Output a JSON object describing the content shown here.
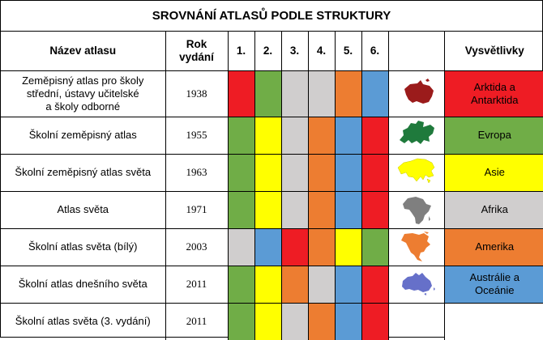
{
  "title": "SROVNÁNÍ ATLASŮ PODLE STRUKTURY",
  "headers": {
    "name": "Název atlasu",
    "year_line1": "Rok",
    "year_line2": "vydání",
    "sections": [
      "1.",
      "2.",
      "3.",
      "4.",
      "5.",
      "6."
    ],
    "legend": "Vysvětlivky"
  },
  "colors": {
    "red": "#ee1c24",
    "green": "#70ad47",
    "yellow": "#ffff00",
    "gray": "#d0cece",
    "orange": "#ed7d31",
    "blue": "#5b9bd5",
    "white": "#ffffff"
  },
  "rows": [
    {
      "name_lines": [
        "Zeměpisný atlas pro školy",
        "střední, ústavy učitelské",
        "a školy odborné"
      ],
      "year": "1938",
      "sections": [
        "red",
        "green",
        "gray",
        "gray",
        "orange",
        "blue"
      ]
    },
    {
      "name_lines": [
        "Školní zeměpisný atlas"
      ],
      "year": "1955",
      "sections": [
        "green",
        "yellow",
        "gray",
        "orange",
        "blue",
        "red"
      ]
    },
    {
      "name_lines": [
        "Školní zeměpisný atlas světa"
      ],
      "year": "1963",
      "sections": [
        "green",
        "yellow",
        "gray",
        "orange",
        "blue",
        "red"
      ]
    },
    {
      "name_lines": [
        "Atlas světa"
      ],
      "year": "1971",
      "sections": [
        "green",
        "yellow",
        "gray",
        "orange",
        "blue",
        "red"
      ]
    },
    {
      "name_lines": [
        "Školní atlas světa (bílý)"
      ],
      "year": "2003",
      "sections": [
        "gray",
        "blue",
        "red",
        "orange",
        "yellow",
        "green"
      ]
    },
    {
      "name_lines": [
        "Školní atlas dnešního světa"
      ],
      "year": "2011",
      "sections": [
        "green",
        "yellow",
        "orange",
        "gray",
        "blue",
        "red"
      ]
    },
    {
      "name_lines": [
        "Školní atlas světa (3. vydání)"
      ],
      "year": "2011",
      "sections": [
        "green",
        "yellow",
        "gray",
        "orange",
        "blue",
        "red"
      ]
    }
  ],
  "legend": [
    {
      "icon": "antarctica-map-icon",
      "lines": [
        "Arktida a",
        "Antarktida"
      ],
      "color": "red"
    },
    {
      "icon": "europe-map-icon",
      "lines": [
        "Evropa"
      ],
      "color": "green"
    },
    {
      "icon": "asia-map-icon",
      "lines": [
        "Asie"
      ],
      "color": "yellow"
    },
    {
      "icon": "africa-map-icon",
      "lines": [
        "Afrika"
      ],
      "color": "gray"
    },
    {
      "icon": "north-america-map-icon",
      "lines": [
        "Amerika"
      ],
      "color": "orange"
    },
    {
      "icon": "australia-map-icon",
      "lines": [
        "Austrálie a",
        "Oceánie"
      ],
      "color": "blue"
    },
    {
      "icon": "",
      "lines": [],
      "color": "white"
    }
  ]
}
